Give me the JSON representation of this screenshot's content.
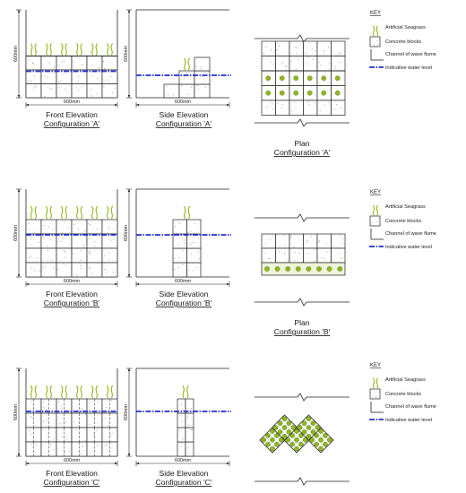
{
  "dimension_labels": {
    "width": "600mm",
    "height": "600mm"
  },
  "rows": [
    {
      "config": "A",
      "captions": {
        "front": [
          "Front Elevation",
          "Configuration 'A'"
        ],
        "side": [
          "Side Elevation",
          "Configuration 'A'"
        ],
        "plan": [
          "Plan",
          "Configuration 'A'"
        ]
      }
    },
    {
      "config": "B",
      "captions": {
        "front": [
          "Front Elevation",
          "Configuration 'B'"
        ],
        "side": [
          "Side Elevation",
          "Configuration 'B'"
        ],
        "plan": [
          "Plan",
          "Configuration 'B'"
        ]
      }
    },
    {
      "config": "C",
      "captions": {
        "front": [
          "Front Elevation",
          "Configuration 'C'"
        ],
        "side": [
          "Side Elevation",
          "Configuration 'C'"
        ],
        "plan": [
          "Plan",
          "Configuration 'C'"
        ]
      }
    }
  ],
  "key": {
    "title": "KEY",
    "items": [
      {
        "icon": "seagrass-icon",
        "label": "Artificial Seagrass"
      },
      {
        "icon": "concrete-block-icon",
        "label": "Concrete blocks"
      },
      {
        "icon": "flume-channel-icon",
        "label": "Channel of wave flume"
      },
      {
        "icon": "water-level-icon",
        "label": "Indicative water level"
      }
    ]
  },
  "colors": {
    "seagrass": "#8db81f",
    "water_level": "#1f2fd6",
    "line": "#222222",
    "dot": "#6e6e6e"
  }
}
